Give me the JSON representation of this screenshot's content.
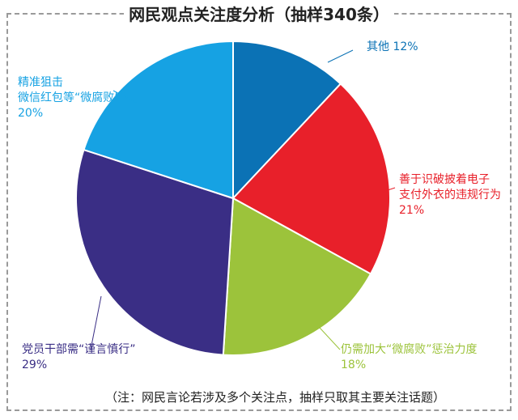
{
  "chart_data": {
    "type": "pie",
    "title": "网民观点关注度分析（抽样340条）",
    "note": "（注：网民言论若涉及多个关注点，抽样只取其主要关注话题）",
    "slices": [
      {
        "label_lines": [
          "其他 12%"
        ],
        "value": 12,
        "color": "#0b72b5"
      },
      {
        "label_lines": [
          "善于识破披着电子",
          "支付外衣的违规行为",
          "21%"
        ],
        "value": 21,
        "color": "#e8202a"
      },
      {
        "label_lines": [
          "仍需加大“微腐败”惩治力度",
          "18%"
        ],
        "value": 18,
        "color": "#9cc33b"
      },
      {
        "label_lines": [
          "党员干部需“谨言慎行”",
          "29%"
        ],
        "value": 29,
        "color": "#3a2e85"
      },
      {
        "label_lines": [
          "精准狙击",
          "微信红包等“微腐败”",
          "20%"
        ],
        "value": 20,
        "color": "#16a2e3"
      }
    ]
  }
}
